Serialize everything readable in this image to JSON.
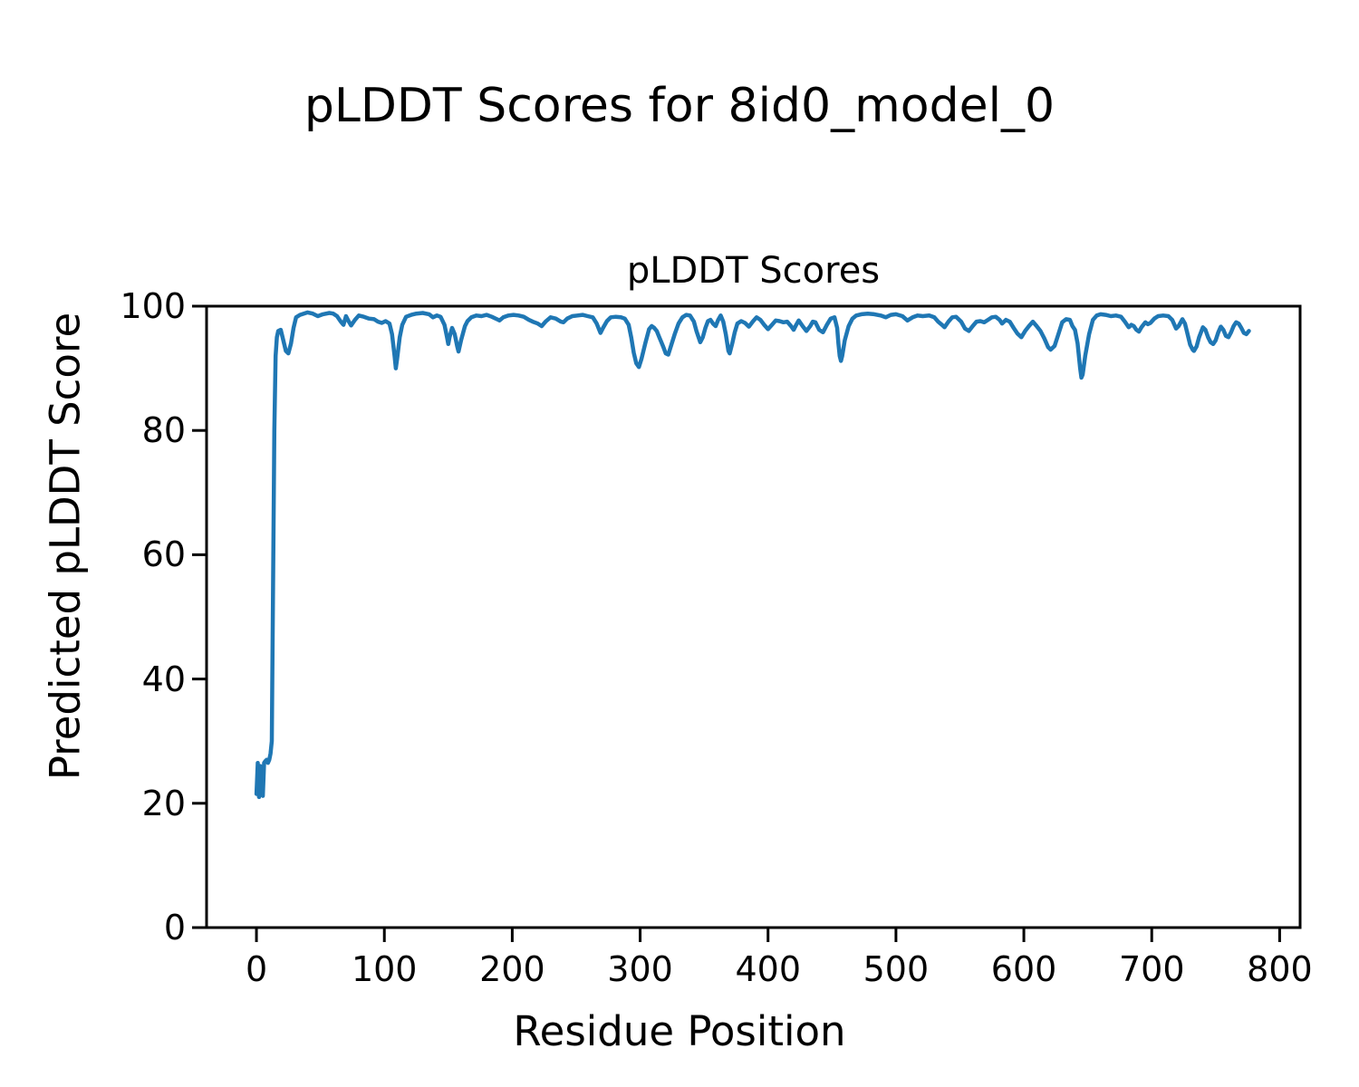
{
  "figure": {
    "suptitle": "pLDDT Scores for 8id0_model_0",
    "background_color": "#ffffff",
    "text_color": "#000000"
  },
  "chart_data": {
    "type": "line",
    "title": "pLDDT Scores",
    "xlabel": "Residue Position",
    "ylabel": "Predicted pLDDT Score",
    "xlim": [
      -39,
      816
    ],
    "ylim": [
      0,
      100
    ],
    "xticks": [
      0,
      100,
      200,
      300,
      400,
      500,
      600,
      700,
      800
    ],
    "yticks": [
      0,
      20,
      40,
      60,
      80,
      100
    ],
    "grid": false,
    "legend": null,
    "line_color": "#1f77b4",
    "spine_color": "#000000",
    "series": [
      {
        "name": "pLDDT",
        "x": [
          0,
          1,
          2,
          3,
          4,
          5,
          6,
          7,
          8,
          9,
          10,
          11,
          12,
          13,
          14,
          15,
          16,
          17,
          19,
          21,
          23,
          25,
          27,
          29,
          31,
          34,
          37,
          40,
          44,
          48,
          52,
          57,
          60,
          63,
          66,
          68,
          70,
          72,
          74,
          77,
          80,
          84,
          88,
          92,
          95,
          98,
          101,
          104,
          106,
          108,
          109,
          110,
          112,
          114,
          117,
          121,
          125,
          130,
          135,
          138,
          141,
          144,
          147,
          149,
          150,
          151,
          153,
          155,
          157,
          158,
          160,
          163,
          165,
          168,
          172,
          176,
          180,
          184,
          188,
          190,
          193,
          197,
          201,
          205,
          209,
          213,
          216,
          220,
          223,
          226,
          230,
          234,
          238,
          240,
          243,
          247,
          251,
          255,
          259,
          263,
          266,
          268,
          269,
          271,
          274,
          277,
          281,
          285,
          288,
          291,
          293,
          295,
          297,
          299,
          301,
          304,
          307,
          309,
          311,
          313,
          315,
          318,
          320,
          322,
          324,
          327,
          330,
          333,
          336,
          339,
          342,
          344,
          346,
          347,
          349,
          351,
          353,
          355,
          357,
          359,
          361,
          363,
          365,
          367,
          369,
          370,
          372,
          374,
          376,
          379,
          382,
          385,
          388,
          391,
          394,
          397,
          400,
          403,
          406,
          409,
          412,
          415,
          418,
          420,
          422,
          424,
          427,
          430,
          433,
          435,
          437,
          440,
          443,
          446,
          449,
          452,
          454,
          455,
          456,
          457,
          458,
          460,
          463,
          466,
          469,
          473,
          478,
          483,
          488,
          492,
          496,
          500,
          505,
          509,
          513,
          517,
          521,
          526,
          530,
          533,
          536,
          538,
          541,
          544,
          547,
          551,
          554,
          557,
          560,
          563,
          566,
          569,
          572,
          575,
          578,
          581,
          583,
          586,
          589,
          592,
          595,
          598,
          601,
          604,
          607,
          610,
          613,
          616,
          619,
          621,
          624,
          627,
          630,
          633,
          636,
          638,
          640,
          642,
          644,
          645,
          646,
          648,
          651,
          654,
          657,
          660,
          664,
          668,
          672,
          676,
          679,
          682,
          684,
          686,
          688,
          690,
          692,
          695,
          697,
          699,
          702,
          705,
          709,
          713,
          716,
          719,
          721,
          724,
          726,
          728,
          730,
          732,
          733,
          735,
          737,
          740,
          742,
          744,
          746,
          748,
          750,
          752,
          754,
          756,
          758,
          760,
          762,
          764,
          766,
          768,
          770,
          772,
          774,
          776
        ],
        "y": [
          21.5,
          26.5,
          21.0,
          26.0,
          25.5,
          21.2,
          26.5,
          26.8,
          27.0,
          26.5,
          27.0,
          28.0,
          30.0,
          55.0,
          80.0,
          92.0,
          95.0,
          96.0,
          96.2,
          94.5,
          92.8,
          92.4,
          94.0,
          96.5,
          98.2,
          98.6,
          98.8,
          99.0,
          98.8,
          98.4,
          98.7,
          98.9,
          98.8,
          98.4,
          97.5,
          97.0,
          98.4,
          97.6,
          96.9,
          97.8,
          98.5,
          98.3,
          98.0,
          97.9,
          97.5,
          97.3,
          97.6,
          97.2,
          95.5,
          92.0,
          90.0,
          91.5,
          95.0,
          97.0,
          98.3,
          98.6,
          98.8,
          98.9,
          98.7,
          98.2,
          98.5,
          98.3,
          97.0,
          95.0,
          93.9,
          95.0,
          96.5,
          95.5,
          93.5,
          92.7,
          94.5,
          96.8,
          97.6,
          98.2,
          98.5,
          98.4,
          98.6,
          98.3,
          97.9,
          97.7,
          98.2,
          98.5,
          98.6,
          98.5,
          98.3,
          97.8,
          97.5,
          97.2,
          96.8,
          97.5,
          98.2,
          98.0,
          97.5,
          97.4,
          98.0,
          98.4,
          98.5,
          98.6,
          98.4,
          98.2,
          97.2,
          96.2,
          95.7,
          96.5,
          97.6,
          98.2,
          98.3,
          98.2,
          98.0,
          97.0,
          95.0,
          92.5,
          90.8,
          90.2,
          91.5,
          94.0,
          96.3,
          96.8,
          96.5,
          96.0,
          95.0,
          93.5,
          92.4,
          92.2,
          93.5,
          95.5,
          97.2,
          98.2,
          98.6,
          98.5,
          97.5,
          96.0,
          94.8,
          94.2,
          95.0,
          96.5,
          97.6,
          97.8,
          97.2,
          96.8,
          97.8,
          98.5,
          97.5,
          95.5,
          92.8,
          92.4,
          94.0,
          95.8,
          97.2,
          97.6,
          97.3,
          96.7,
          97.5,
          98.2,
          97.8,
          97.0,
          96.3,
          97.0,
          97.7,
          97.6,
          97.4,
          97.5,
          96.8,
          96.2,
          97.0,
          97.7,
          96.8,
          96.0,
          96.8,
          97.5,
          97.4,
          96.2,
          95.8,
          97.0,
          98.0,
          98.2,
          96.5,
          94.0,
          92.0,
          91.2,
          92.0,
          94.5,
          96.8,
          98.0,
          98.5,
          98.7,
          98.8,
          98.7,
          98.5,
          98.2,
          98.6,
          98.7,
          98.4,
          97.7,
          98.2,
          98.5,
          98.4,
          98.5,
          98.2,
          97.5,
          97.0,
          96.6,
          97.5,
          98.2,
          98.3,
          97.5,
          96.4,
          96.0,
          96.8,
          97.5,
          97.6,
          97.4,
          97.8,
          98.2,
          98.3,
          97.8,
          97.2,
          97.8,
          97.5,
          96.5,
          95.6,
          95.0,
          96.0,
          96.8,
          97.5,
          96.8,
          96.0,
          94.8,
          93.4,
          93.0,
          93.6,
          95.5,
          97.4,
          97.9,
          97.8,
          96.8,
          96.2,
          94.0,
          90.0,
          88.5,
          89.0,
          92.0,
          95.5,
          97.8,
          98.5,
          98.7,
          98.6,
          98.4,
          98.5,
          98.3,
          97.5,
          96.6,
          97.0,
          96.8,
          96.2,
          95.9,
          96.6,
          97.4,
          97.1,
          97.3,
          98.0,
          98.4,
          98.5,
          98.4,
          97.8,
          96.4,
          96.8,
          97.9,
          97.2,
          95.5,
          93.8,
          93.0,
          92.8,
          93.5,
          95.0,
          96.6,
          96.2,
          95.0,
          94.2,
          93.9,
          94.5,
          95.8,
          96.7,
          96.2,
          95.2,
          95.0,
          95.8,
          96.8,
          97.4,
          97.2,
          96.5,
          95.7,
          95.5,
          96.0
        ]
      }
    ]
  }
}
